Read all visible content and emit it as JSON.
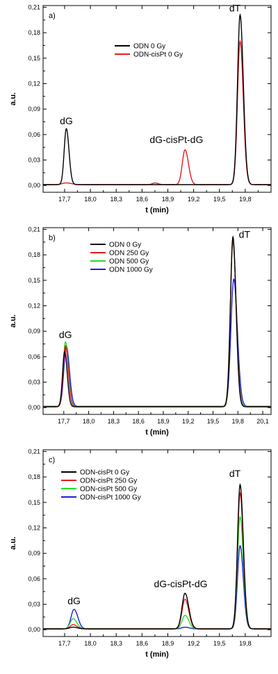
{
  "chart_data": [
    {
      "type": "line",
      "panel_label": "a)",
      "xlabel": "t (min)",
      "ylabel": "a.u.",
      "xlim": [
        17.45,
        20.1
      ],
      "ylim": [
        -0.008,
        0.212
      ],
      "x_ticks": [
        17.7,
        18.0,
        18.3,
        18.6,
        18.9,
        19.2,
        19.5,
        19.8
      ],
      "x_tick_labels": [
        "17,7",
        "18,0",
        "18,3",
        "18,6",
        "18,9",
        "19,2",
        "19,5",
        "19,8"
      ],
      "y_ticks": [
        0.0,
        0.03,
        0.06,
        0.09,
        0.12,
        0.15,
        0.18,
        0.21
      ],
      "y_tick_labels": [
        "0,00",
        "0,03",
        "0,06",
        "0,09",
        "0,12",
        "0,15",
        "0,18",
        "0,21"
      ],
      "legend_position": "top-center",
      "series": [
        {
          "name": "ODN 0 Gy",
          "color": "#000000",
          "peaks": [
            {
              "x": 17.72,
              "h": 0.066,
              "w": 0.025
            },
            {
              "x": 19.74,
              "h": 0.2,
              "w": 0.03
            }
          ],
          "baseline": 0.001
        },
        {
          "name": "ODN-cisPt 0 Gy",
          "color": "#e8191c",
          "peaks": [
            {
              "x": 17.72,
              "h": 0.002,
              "w": 0.05
            },
            {
              "x": 18.75,
              "h": 0.002,
              "w": 0.03
            },
            {
              "x": 19.1,
              "h": 0.041,
              "w": 0.032
            },
            {
              "x": 19.74,
              "h": 0.169,
              "w": 0.03
            }
          ],
          "baseline": 0.001
        }
      ],
      "annotations": [
        {
          "text": "dG",
          "x": 17.72,
          "y": 0.072
        },
        {
          "text": "dG-cisPt-dG",
          "x": 19.0,
          "y": 0.05
        },
        {
          "text": "dT",
          "x": 19.68,
          "y": 0.205
        }
      ]
    },
    {
      "type": "line",
      "panel_label": "b)",
      "xlabel": "t (min)",
      "ylabel": "a.u.",
      "xlim": [
        17.45,
        20.2
      ],
      "ylim": [
        -0.008,
        0.212
      ],
      "x_ticks": [
        17.7,
        18.0,
        18.3,
        18.6,
        18.9,
        19.2,
        19.5,
        19.8,
        20.1
      ],
      "x_tick_labels": [
        "17,7",
        "18,0",
        "18,3",
        "18,6",
        "18,9",
        "19,2",
        "19,5",
        "19,8",
        "20,1"
      ],
      "y_ticks": [
        0.0,
        0.03,
        0.06,
        0.09,
        0.12,
        0.15,
        0.18,
        0.21
      ],
      "y_tick_labels": [
        "0,00",
        "0,03",
        "0,06",
        "0,09",
        "0,12",
        "0,15",
        "0,18",
        "0,21"
      ],
      "legend_position": "top-center",
      "series": [
        {
          "name": "ODN 0 Gy",
          "color": "#000000",
          "peaks": [
            {
              "x": 17.71,
              "h": 0.065,
              "w": 0.025
            },
            {
              "x": 19.74,
              "h": 0.2,
              "w": 0.03
            }
          ],
          "baseline": 0.001
        },
        {
          "name": "ODN 250 Gy",
          "color": "#e8191c",
          "peaks": [
            {
              "x": 17.72,
              "h": 0.072,
              "w": 0.027
            },
            {
              "x": 19.74,
              "h": 0.197,
              "w": 0.031
            }
          ],
          "baseline": 0.001
        },
        {
          "name": "ODN 500 Gy",
          "color": "#22dd22",
          "peaks": [
            {
              "x": 17.72,
              "h": 0.076,
              "w": 0.028
            },
            {
              "x": 19.74,
              "h": 0.193,
              "w": 0.032
            }
          ],
          "baseline": 0.0015
        },
        {
          "name": "ODN 1000 Gy",
          "color": "#1a1ae8",
          "peaks": [
            {
              "x": 17.73,
              "h": 0.071,
              "w": 0.03
            },
            {
              "x": 19.75,
              "h": 0.15,
              "w": 0.035
            }
          ],
          "baseline": 0.0015
        }
      ],
      "annotations": [
        {
          "text": "dG",
          "x": 17.72,
          "y": 0.082
        },
        {
          "text": "dT",
          "x": 19.88,
          "y": 0.2
        }
      ]
    },
    {
      "type": "line",
      "panel_label": "c)",
      "xlabel": "t (min)",
      "ylabel": "a.u.",
      "xlim": [
        17.45,
        20.1
      ],
      "ylim": [
        -0.008,
        0.212
      ],
      "x_ticks": [
        17.7,
        18.0,
        18.3,
        18.6,
        18.9,
        19.2,
        19.5,
        19.8
      ],
      "x_tick_labels": [
        "17,7",
        "18,0",
        "18,3",
        "18,6",
        "18,9",
        "19,2",
        "19,5",
        "19,8"
      ],
      "y_ticks": [
        0.0,
        0.03,
        0.06,
        0.09,
        0.12,
        0.15,
        0.18,
        0.21
      ],
      "y_tick_labels": [
        "0,00",
        "0,03",
        "0,06",
        "0,09",
        "0,12",
        "0,15",
        "0,18",
        "0,21"
      ],
      "legend_position": "top-left",
      "series": [
        {
          "name": "ODN-cisPt 0 Gy",
          "color": "#000000",
          "peaks": [
            {
              "x": 17.8,
              "h": 0.002,
              "w": 0.04
            },
            {
              "x": 19.1,
              "h": 0.042,
              "w": 0.035
            },
            {
              "x": 19.74,
              "h": 0.17,
              "w": 0.03
            }
          ],
          "baseline": 0.001
        },
        {
          "name": "ODN-cisPt 250 Gy",
          "color": "#e8191c",
          "peaks": [
            {
              "x": 17.8,
              "h": 0.005,
              "w": 0.035
            },
            {
              "x": 19.1,
              "h": 0.035,
              "w": 0.035
            },
            {
              "x": 19.74,
              "h": 0.16,
              "w": 0.03
            }
          ],
          "baseline": 0.001
        },
        {
          "name": "ODN-cisPt 500 Gy",
          "color": "#22dd22",
          "peaks": [
            {
              "x": 17.8,
              "h": 0.012,
              "w": 0.035
            },
            {
              "x": 19.1,
              "h": 0.016,
              "w": 0.035
            },
            {
              "x": 19.74,
              "h": 0.132,
              "w": 0.03
            }
          ],
          "baseline": 0.001
        },
        {
          "name": "ODN-cisPt 1000 Gy",
          "color": "#1a1ae8",
          "peaks": [
            {
              "x": 17.81,
              "h": 0.023,
              "w": 0.035
            },
            {
              "x": 19.1,
              "h": 0.002,
              "w": 0.04
            },
            {
              "x": 19.74,
              "h": 0.098,
              "w": 0.03
            }
          ],
          "baseline": 0.001
        }
      ],
      "annotations": [
        {
          "text": "dG",
          "x": 17.81,
          "y": 0.03
        },
        {
          "text": "dG-cisPt-dG",
          "x": 19.05,
          "y": 0.05
        },
        {
          "text": "dT",
          "x": 19.68,
          "y": 0.18
        }
      ]
    }
  ]
}
